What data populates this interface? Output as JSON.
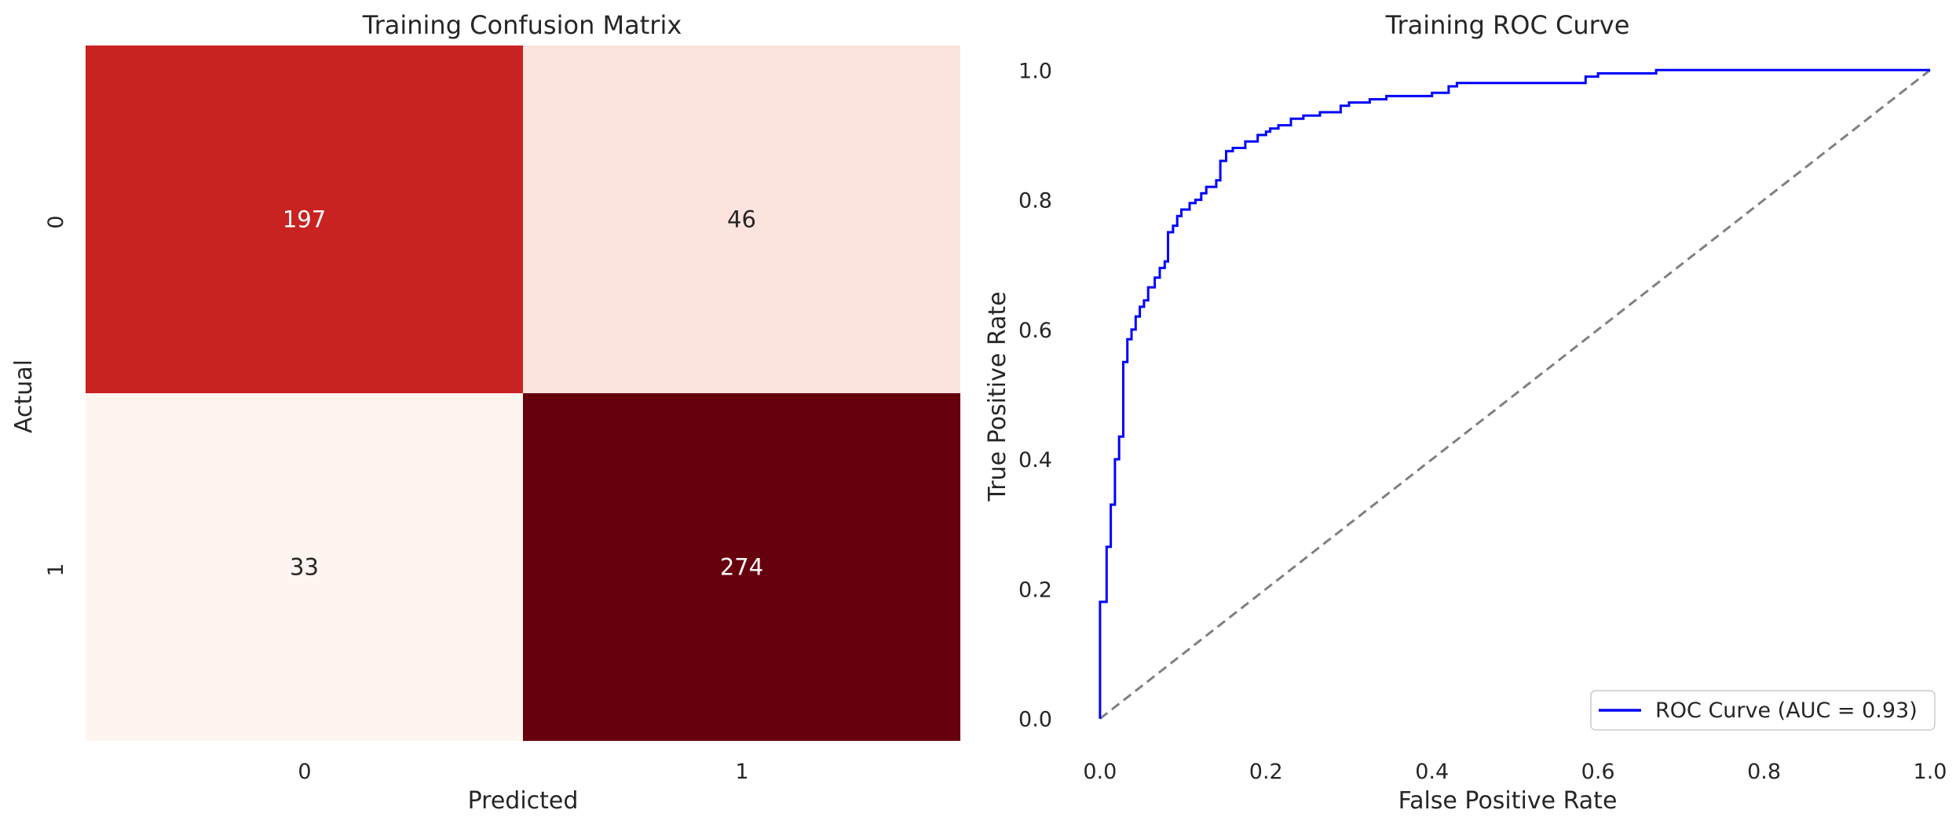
{
  "figure": {
    "colors": {
      "background": "#ffffff",
      "cmap_low": "#fff5f0",
      "cmap_mid": "#e02b26",
      "cmap_high": "#67000d",
      "roc_line": "#0000ff",
      "diagonal": "#808080"
    }
  },
  "chart_data": [
    {
      "type": "heatmap",
      "title": "Training Confusion Matrix",
      "xlabel": "Predicted",
      "ylabel": "Actual",
      "x_categories": [
        "0",
        "1"
      ],
      "y_categories": [
        "0",
        "1"
      ],
      "values": [
        [
          197,
          46
        ],
        [
          33,
          274
        ]
      ],
      "cell_labels": [
        [
          "197",
          "46"
        ],
        [
          "33",
          "274"
        ]
      ],
      "colormap": "Reds",
      "colorbar": false,
      "grid": false
    },
    {
      "type": "line",
      "title": "Training ROC Curve",
      "xlabel": "False Positive Rate",
      "ylabel": "True Positive Rate",
      "xlim": [
        -0.05,
        1.0
      ],
      "ylim": [
        -0.05,
        1.05
      ],
      "x_ticks": [
        "0.0",
        "0.2",
        "0.4",
        "0.6",
        "0.8",
        "1.0"
      ],
      "y_ticks": [
        "0.0",
        "0.2",
        "0.4",
        "0.6",
        "0.8",
        "1.0"
      ],
      "grid": false,
      "legend_placement": "lower-right",
      "series": [
        {
          "name": "ROC Curve (AUC = 0.93)",
          "style": "solid",
          "points": [
            [
              0.0,
              0.0
            ],
            [
              0.0,
              0.18
            ],
            [
              0.008,
              0.18
            ],
            [
              0.008,
              0.265
            ],
            [
              0.013,
              0.265
            ],
            [
              0.013,
              0.33
            ],
            [
              0.018,
              0.33
            ],
            [
              0.018,
              0.4
            ],
            [
              0.023,
              0.4
            ],
            [
              0.023,
              0.435
            ],
            [
              0.028,
              0.435
            ],
            [
              0.028,
              0.55
            ],
            [
              0.033,
              0.55
            ],
            [
              0.033,
              0.585
            ],
            [
              0.038,
              0.585
            ],
            [
              0.038,
              0.6
            ],
            [
              0.043,
              0.6
            ],
            [
              0.043,
              0.62
            ],
            [
              0.048,
              0.62
            ],
            [
              0.048,
              0.635
            ],
            [
              0.053,
              0.635
            ],
            [
              0.053,
              0.645
            ],
            [
              0.058,
              0.645
            ],
            [
              0.058,
              0.665
            ],
            [
              0.066,
              0.665
            ],
            [
              0.066,
              0.68
            ],
            [
              0.072,
              0.68
            ],
            [
              0.072,
              0.695
            ],
            [
              0.078,
              0.695
            ],
            [
              0.078,
              0.705
            ],
            [
              0.082,
              0.705
            ],
            [
              0.082,
              0.75
            ],
            [
              0.088,
              0.75
            ],
            [
              0.088,
              0.76
            ],
            [
              0.093,
              0.76
            ],
            [
              0.093,
              0.775
            ],
            [
              0.098,
              0.775
            ],
            [
              0.098,
              0.785
            ],
            [
              0.108,
              0.785
            ],
            [
              0.108,
              0.795
            ],
            [
              0.115,
              0.795
            ],
            [
              0.115,
              0.8
            ],
            [
              0.122,
              0.8
            ],
            [
              0.122,
              0.81
            ],
            [
              0.128,
              0.81
            ],
            [
              0.128,
              0.82
            ],
            [
              0.14,
              0.82
            ],
            [
              0.14,
              0.83
            ],
            [
              0.145,
              0.83
            ],
            [
              0.145,
              0.86
            ],
            [
              0.152,
              0.86
            ],
            [
              0.152,
              0.875
            ],
            [
              0.16,
              0.875
            ],
            [
              0.16,
              0.88
            ],
            [
              0.175,
              0.88
            ],
            [
              0.175,
              0.89
            ],
            [
              0.19,
              0.89
            ],
            [
              0.19,
              0.9
            ],
            [
              0.2,
              0.9
            ],
            [
              0.2,
              0.905
            ],
            [
              0.205,
              0.905
            ],
            [
              0.205,
              0.91
            ],
            [
              0.215,
              0.91
            ],
            [
              0.215,
              0.915
            ],
            [
              0.23,
              0.915
            ],
            [
              0.23,
              0.925
            ],
            [
              0.245,
              0.925
            ],
            [
              0.245,
              0.93
            ],
            [
              0.265,
              0.93
            ],
            [
              0.265,
              0.935
            ],
            [
              0.29,
              0.935
            ],
            [
              0.29,
              0.945
            ],
            [
              0.3,
              0.945
            ],
            [
              0.3,
              0.95
            ],
            [
              0.325,
              0.95
            ],
            [
              0.325,
              0.955
            ],
            [
              0.345,
              0.955
            ],
            [
              0.345,
              0.96
            ],
            [
              0.4,
              0.96
            ],
            [
              0.4,
              0.965
            ],
            [
              0.42,
              0.965
            ],
            [
              0.42,
              0.975
            ],
            [
              0.43,
              0.975
            ],
            [
              0.43,
              0.98
            ],
            [
              0.585,
              0.98
            ],
            [
              0.585,
              0.99
            ],
            [
              0.6,
              0.99
            ],
            [
              0.6,
              0.995
            ],
            [
              0.67,
              0.995
            ],
            [
              0.67,
              1.0
            ],
            [
              1.0,
              1.0
            ]
          ]
        },
        {
          "name": "",
          "style": "dashed",
          "points": [
            [
              0.0,
              0.0
            ],
            [
              1.0,
              1.0
            ]
          ]
        }
      ]
    }
  ]
}
